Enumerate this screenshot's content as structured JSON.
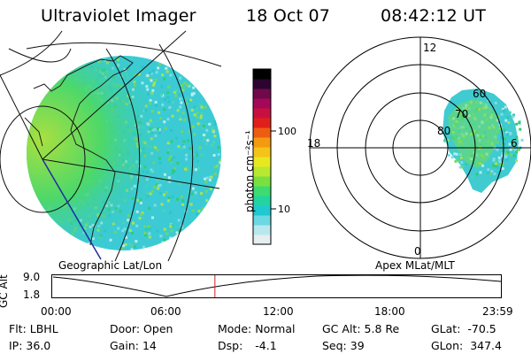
{
  "header": {
    "instrument": "Ultraviolet Imager",
    "date": "18 Oct 07",
    "time": "08:42:12 UT"
  },
  "left_panel": {
    "label": "Geographic Lat/Lon"
  },
  "right_panel": {
    "label": "Apex MLat/MLT",
    "mlt_labels": [
      "12",
      "18",
      "6",
      "0"
    ],
    "lat_labels": [
      "60",
      "70",
      "80"
    ]
  },
  "colorbar": {
    "label": "photon cm⁻²s⁻¹",
    "ticks": [
      "100",
      "10"
    ],
    "colors": [
      "#e6eef0",
      "#b8e8ee",
      "#6cd8e2",
      "#20c8d0",
      "#22d4a0",
      "#3cdc70",
      "#7ae040",
      "#b8e830",
      "#e8e820",
      "#f4c418",
      "#f49a10",
      "#ee5c12",
      "#e02018",
      "#c81040",
      "#a40858",
      "#70084c",
      "#2c0430",
      "#000000"
    ]
  },
  "timeline": {
    "ylabel": "GC Alt",
    "yticks": [
      "9.0",
      "1.8"
    ],
    "xticks": [
      "00:00",
      "06:00",
      "12:00",
      "18:00",
      "23:59"
    ],
    "current_fraction": 0.3626,
    "marker_color": "#d02020"
  },
  "status": {
    "flt_label": "Flt:",
    "flt_value": "LBHL",
    "ip_label": "IP:",
    "ip_value": "36.0",
    "door_label": "Door:",
    "door_value": "Open",
    "gain_label": "Gain:",
    "gain_value": "14",
    "mode_label": "Mode:",
    "mode_value": "Normal",
    "dsp_label": "Dsp:",
    "dsp_value": "-4.1",
    "gcalt_label": "GC Alt:",
    "gcalt_value": "5.8 Re",
    "seq_label": "Seq:",
    "seq_value": "39",
    "glat_label": "GLat:",
    "glat_value": "-70.5",
    "glon_label": "GLon:",
    "glon_value": "347.4"
  }
}
